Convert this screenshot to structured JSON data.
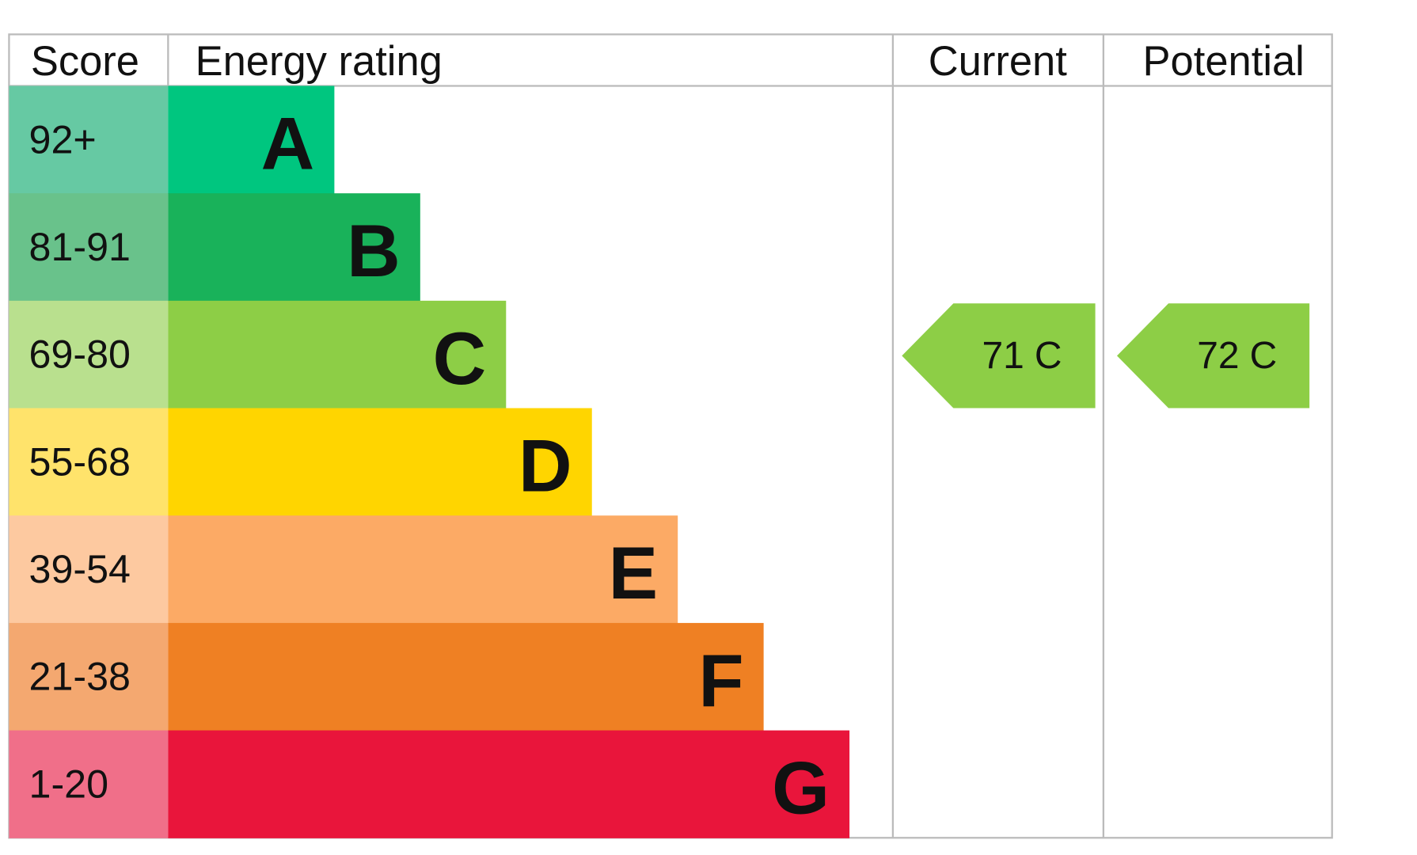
{
  "header": {
    "score": "Score",
    "rating": "Energy rating",
    "current": "Current",
    "potential": "Potential"
  },
  "rows": [
    {
      "score": "92+",
      "band": "A",
      "color": "#00c67f",
      "light": "#66c9a3"
    },
    {
      "score": "81-91",
      "band": "B",
      "color": "#19b25a",
      "light": "#69c28b"
    },
    {
      "score": "69-80",
      "band": "C",
      "color": "#8dce46",
      "light": "#b9e08e"
    },
    {
      "score": "55-68",
      "band": "D",
      "color": "#ffd500",
      "light": "#ffe36b"
    },
    {
      "score": "39-54",
      "band": "E",
      "color": "#fcaa65",
      "light": "#fdc9a0"
    },
    {
      "score": "21-38",
      "band": "F",
      "color": "#ef8023",
      "light": "#f4a870"
    },
    {
      "score": "1-20",
      "band": "G",
      "color": "#e9153b",
      "light": "#f06f89"
    }
  ],
  "current": {
    "value": 71,
    "band": "C"
  },
  "potential": {
    "value": 72,
    "band": "C"
  }
}
